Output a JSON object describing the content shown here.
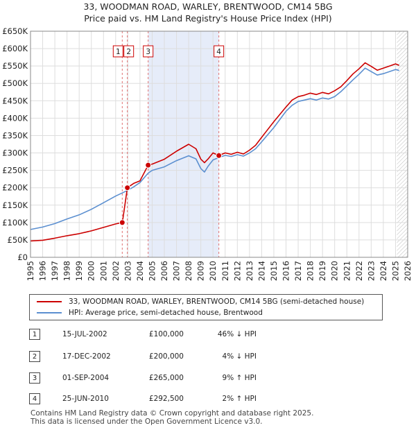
{
  "chart_data": {
    "type": "line",
    "title": "33, WOODMAN ROAD, WARLEY, BRENTWOOD, CM14 5BG",
    "subtitle": "Price paid vs. HM Land Registry's House Price Index (HPI)",
    "xlim": [
      1995,
      2026
    ],
    "ylim": [
      0,
      650000
    ],
    "y_ticks": [
      0,
      50000,
      100000,
      150000,
      200000,
      250000,
      300000,
      350000,
      400000,
      450000,
      500000,
      550000,
      600000,
      650000
    ],
    "y_tick_labels": [
      "£0",
      "£50K",
      "£100K",
      "£150K",
      "£200K",
      "£250K",
      "£300K",
      "£350K",
      "£400K",
      "£450K",
      "£500K",
      "£550K",
      "£600K",
      "£650K"
    ],
    "x_ticks": [
      "1995",
      "1996",
      "1997",
      "1998",
      "1999",
      "2000",
      "2001",
      "2002",
      "2003",
      "2004",
      "2005",
      "2006",
      "2007",
      "2008",
      "2009",
      "2010",
      "2011",
      "2012",
      "2013",
      "2014",
      "2015",
      "2016",
      "2017",
      "2018",
      "2019",
      "2020",
      "2021",
      "2022",
      "2023",
      "2024",
      "2025",
      "2026"
    ],
    "grid": true,
    "shaded_region": [
      2004.67,
      2010.48
    ],
    "forecast_from": 2025.0,
    "series": [
      {
        "name": "33, WOODMAN ROAD, WARLEY, BRENTWOOD, CM14 5BG (semi-detached house)",
        "color": "#cc0000",
        "x": [
          1995,
          1996,
          1997,
          1998,
          1999,
          2000,
          2001,
          2002,
          2002.54,
          2002.55,
          2002.96,
          2003.5,
          2004,
          2004.67,
          2005,
          2006,
          2007,
          2008,
          2008.6,
          2009,
          2009.3,
          2009.6,
          2010,
          2010.48,
          2011,
          2011.5,
          2012,
          2012.5,
          2013,
          2013.5,
          2014,
          2015,
          2016,
          2016.5,
          2017,
          2017.5,
          2018,
          2018.5,
          2019,
          2019.5,
          2020,
          2020.5,
          2021,
          2021.5,
          2022,
          2022.5,
          2023,
          2023.5,
          2024,
          2024.5,
          2025,
          2025.3
        ],
        "y": [
          47000,
          49000,
          55000,
          62000,
          68000,
          76000,
          86000,
          96000,
          100000,
          100000,
          200000,
          213000,
          220000,
          265000,
          268000,
          282000,
          305000,
          325000,
          312000,
          282000,
          272000,
          283000,
          300000,
          292500,
          300000,
          296000,
          302000,
          297000,
          308000,
          322000,
          345000,
          390000,
          432000,
          452000,
          462000,
          466000,
          472000,
          468000,
          474000,
          470000,
          479000,
          490000,
          508000,
          527000,
          542000,
          559000,
          549000,
          538000,
          544000,
          550000,
          556000,
          552000
        ]
      },
      {
        "name": "HPI: Average price, semi-detached house, Brentwood",
        "color": "#5b8fd0",
        "x": [
          1995,
          1996,
          1997,
          1998,
          1999,
          2000,
          2001,
          2002,
          2002.54,
          2002.96,
          2003.5,
          2004,
          2004.67,
          2005,
          2006,
          2007,
          2008,
          2008.6,
          2009,
          2009.3,
          2009.6,
          2010,
          2010.48,
          2011,
          2011.5,
          2012,
          2012.5,
          2013,
          2013.5,
          2014,
          2015,
          2016,
          2016.5,
          2017,
          2017.5,
          2018,
          2018.5,
          2019,
          2019.5,
          2020,
          2020.5,
          2021,
          2021.5,
          2022,
          2022.5,
          2023,
          2023.5,
          2024,
          2024.5,
          2025,
          2025.3
        ],
        "y": [
          80000,
          87000,
          97000,
          110000,
          122000,
          138000,
          157000,
          176000,
          185000,
          192000,
          203000,
          215000,
          242000,
          250000,
          260000,
          278000,
          292000,
          283000,
          255000,
          245000,
          262000,
          280000,
          287000,
          293000,
          290000,
          295000,
          291000,
          300000,
          312000,
          332000,
          373000,
          420000,
          437000,
          448000,
          452000,
          456000,
          452000,
          458000,
          455000,
          462000,
          476000,
          493000,
          510000,
          526000,
          544000,
          534000,
          524000,
          528000,
          534000,
          540000,
          537000
        ]
      }
    ],
    "sale_markers": [
      {
        "label": "1",
        "x": 2002.54,
        "y": 100000
      },
      {
        "label": "2",
        "x": 2002.96,
        "y": 200000
      },
      {
        "label": "3",
        "x": 2004.67,
        "y": 265000
      },
      {
        "label": "4",
        "x": 2010.48,
        "y": 292500
      }
    ]
  },
  "legend": {
    "property": "33, WOODMAN ROAD, WARLEY, BRENTWOOD, CM14 5BG (semi-detached house)",
    "hpi": "HPI: Average price, semi-detached house, Brentwood"
  },
  "sales": [
    {
      "num": "1",
      "date": "15-JUL-2002",
      "price": "£100,000",
      "hpi": "46% ↓ HPI"
    },
    {
      "num": "2",
      "date": "17-DEC-2002",
      "price": "£200,000",
      "hpi": "4% ↓ HPI"
    },
    {
      "num": "3",
      "date": "01-SEP-2004",
      "price": "£265,000",
      "hpi": "9% ↑ HPI"
    },
    {
      "num": "4",
      "date": "25-JUN-2010",
      "price": "£292,500",
      "hpi": "2% ↑ HPI"
    }
  ],
  "footer": {
    "line1": "Contains HM Land Registry data © Crown copyright and database right 2025.",
    "line2": "This data is licensed under the Open Government Licence v3.0."
  }
}
